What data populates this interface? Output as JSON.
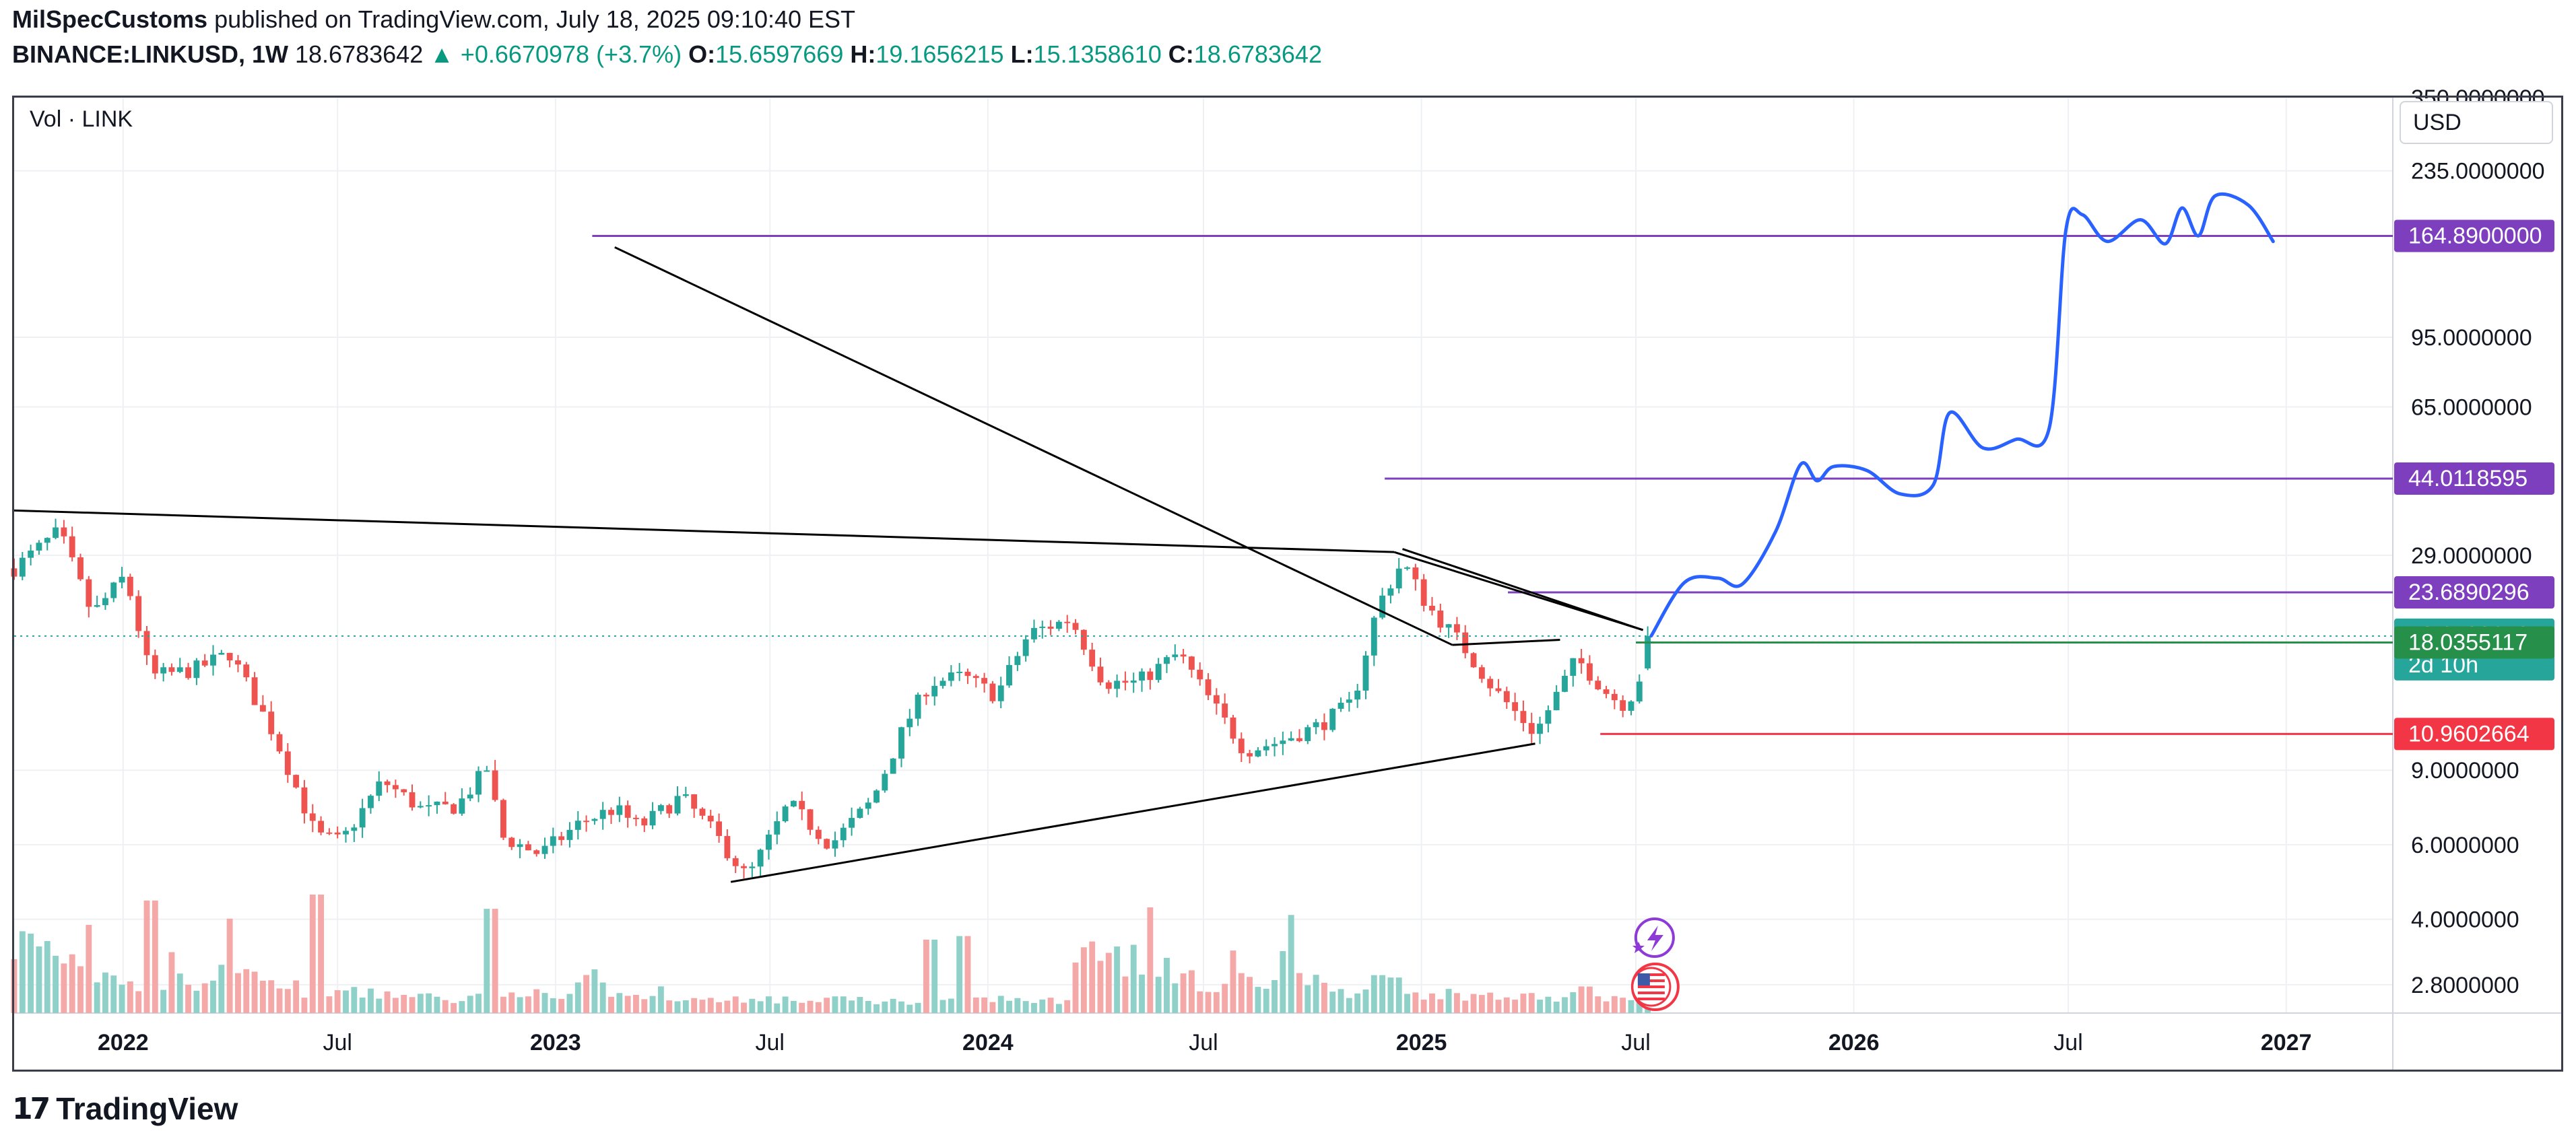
{
  "header": {
    "author": "MilSpecCustoms",
    "published_text": "published on TradingView.com, July 18, 2025 09:10:40 EST",
    "symbol": "BINANCE:LINKUSD, 1W",
    "price": "18.6783642",
    "change": "▲ +0.6670978 (+3.7%)",
    "open_label": "O:",
    "open": "15.6597669",
    "high_label": "H:",
    "high": "19.1656215",
    "low_label": "L:",
    "low": "15.1358610",
    "close_label": "C:",
    "close": "18.6783642"
  },
  "pane": {
    "volume_label": "Vol · LINK",
    "currency": "USD"
  },
  "footer": {
    "brand": "TradingView",
    "logo": "tv-logo"
  },
  "colors": {
    "up": "#26a69a",
    "down": "#ef5350",
    "vol_up": "#8fd1c8",
    "vol_down": "#f5a8a8",
    "purple": "#7e3fbf",
    "projection": "#2962ff",
    "trend": "#000000",
    "green_label": "#26904a",
    "red_label": "#f23645",
    "grid": "#eef0f3"
  },
  "chart_data": {
    "type": "candlestick",
    "scale": "log",
    "ylim": [
      2.4,
      350
    ],
    "xlim": [
      "2021-10-01",
      "2027-04-01"
    ],
    "x_ticks": [
      {
        "label": "2022",
        "date": "2022-01-01",
        "bold": true
      },
      {
        "label": "Jul",
        "date": "2022-07-01",
        "bold": false
      },
      {
        "label": "2023",
        "date": "2023-01-01",
        "bold": true
      },
      {
        "label": "Jul",
        "date": "2023-07-01",
        "bold": false
      },
      {
        "label": "2024",
        "date": "2024-01-01",
        "bold": true
      },
      {
        "label": "Jul",
        "date": "2024-07-01",
        "bold": false
      },
      {
        "label": "2025",
        "date": "2025-01-01",
        "bold": true
      },
      {
        "label": "Jul",
        "date": "2025-07-01",
        "bold": false
      },
      {
        "label": "2026",
        "date": "2026-01-01",
        "bold": true
      },
      {
        "label": "Jul",
        "date": "2026-07-01",
        "bold": false
      },
      {
        "label": "2027",
        "date": "2027-01-01",
        "bold": true
      }
    ],
    "y_ticks": [
      {
        "label": "350.0000000",
        "value": 350
      },
      {
        "label": "235.0000000",
        "value": 235
      },
      {
        "label": "95.0000000",
        "value": 95
      },
      {
        "label": "65.0000000",
        "value": 65
      },
      {
        "label": "29.0000000",
        "value": 29
      },
      {
        "label": "9.0000000",
        "value": 9
      },
      {
        "label": "6.0000000",
        "value": 6
      },
      {
        "label": "4.0000000",
        "value": 4
      },
      {
        "label": "2.8000000",
        "value": 2.8
      }
    ],
    "price_labels": [
      {
        "label": "164.8900000",
        "value": 164.89,
        "color": "purple"
      },
      {
        "label": "44.0118595",
        "value": 44.0118595,
        "color": "purple"
      },
      {
        "label": "23.6890296",
        "value": 23.6890296,
        "color": "purple"
      },
      {
        "label": "18.6783642",
        "sub": "2d 10h",
        "value": 18.6783642,
        "color": "up"
      },
      {
        "label": "18.0355117",
        "value": 18.0355117,
        "color": "green_label"
      },
      {
        "label": "10.9602664",
        "value": 10.9602664,
        "color": "red_label"
      }
    ],
    "horizontal_levels": [
      {
        "value": 164.89,
        "from": "2023-02-01",
        "color": "purple"
      },
      {
        "value": 44.0118595,
        "from": "2024-12-01",
        "color": "purple"
      },
      {
        "value": 23.6890296,
        "from": "2025-03-15",
        "color": "purple"
      },
      {
        "value": 18.0355117,
        "from": "2025-07-01",
        "color": "green_label"
      },
      {
        "value": 10.9602664,
        "from": "2025-06-01",
        "color": "red_label"
      }
    ],
    "last_price": 18.6783642,
    "close_path": [
      [
        "2021-10-01",
        27
      ],
      [
        "2021-11-08",
        33
      ],
      [
        "2021-12-06",
        21
      ],
      [
        "2022-01-03",
        26
      ],
      [
        "2022-01-24",
        15
      ],
      [
        "2022-03-01",
        15.5
      ],
      [
        "2022-04-01",
        17
      ],
      [
        "2022-05-08",
        11
      ],
      [
        "2022-06-13",
        6.3
      ],
      [
        "2022-07-04",
        6.1
      ],
      [
        "2022-08-08",
        8.5
      ],
      [
        "2022-09-12",
        7.2
      ],
      [
        "2022-10-10",
        7.4
      ],
      [
        "2022-11-07",
        9.3
      ],
      [
        "2022-11-14",
        6.3
      ],
      [
        "2022-12-19",
        5.7
      ],
      [
        "2023-01-23",
        6.8
      ],
      [
        "2023-02-20",
        7.3
      ],
      [
        "2023-03-13",
        6.6
      ],
      [
        "2023-04-17",
        7.8
      ],
      [
        "2023-05-15",
        6.4
      ],
      [
        "2023-06-12",
        5.0
      ],
      [
        "2023-07-17",
        7.5
      ],
      [
        "2023-08-21",
        6.0
      ],
      [
        "2023-09-25",
        7.6
      ],
      [
        "2023-10-23",
        11.5
      ],
      [
        "2023-11-13",
        14.5
      ],
      [
        "2023-12-11",
        15.0
      ],
      [
        "2024-01-08",
        13.5
      ],
      [
        "2024-02-05",
        19.0
      ],
      [
        "2024-03-11",
        20.5
      ],
      [
        "2024-04-08",
        14.5
      ],
      [
        "2024-05-06",
        14.5
      ],
      [
        "2024-06-10",
        17.0
      ],
      [
        "2024-07-08",
        13.0
      ],
      [
        "2024-08-05",
        10.0
      ],
      [
        "2024-09-02",
        10.5
      ],
      [
        "2024-10-07",
        11.5
      ],
      [
        "2024-11-04",
        13.0
      ],
      [
        "2024-11-25",
        22.0
      ],
      [
        "2024-12-16",
        28.0
      ],
      [
        "2025-01-06",
        22.0
      ],
      [
        "2025-02-03",
        18.0
      ],
      [
        "2025-03-03",
        14.0
      ],
      [
        "2025-04-07",
        11.0
      ],
      [
        "2025-05-12",
        16.5
      ],
      [
        "2025-06-09",
        13.5
      ],
      [
        "2025-06-23",
        12.8
      ],
      [
        "2025-07-07",
        15.5
      ],
      [
        "2025-07-14",
        18.68
      ]
    ],
    "volume_pattern": [
      0.55,
      0.6,
      0.62,
      0.5,
      0.62,
      0.48,
      0.4,
      0.55,
      0.45,
      0.72,
      0.3,
      0.42,
      0.35,
      0.3,
      0.28,
      0.22,
      0.25,
      0.2,
      0.23,
      0.55,
      0.28,
      0.32,
      0.24,
      0.2,
      0.22,
      0.48,
      0.95,
      0.4,
      0.3,
      0.28,
      0.22,
      0.25,
      0.2,
      0.18,
      0.22,
      0.18,
      0.2,
      0.16,
      0.15,
      0.18,
      0.2,
      0.17,
      0.16,
      0.2,
      0.15,
      0.18,
      0.14,
      0.15,
      0.16,
      0.14,
      0.15,
      0.13,
      0.14,
      0.12,
      0.13,
      0.15,
      0.14,
      0.12,
      0.11,
      0.13,
      0.16,
      0.18,
      0.2,
      0.16,
      0.14,
      0.12,
      0.12,
      0.15,
      0.2,
      0.25,
      0.3,
      0.22,
      0.18,
      0.15,
      0.14,
      0.16,
      0.14,
      0.13,
      0.18,
      0.15,
      0.12,
      0.14,
      0.12,
      0.1,
      0.11,
      0.12,
      0.1,
      0.13,
      0.12,
      0.11,
      0.1,
      0.12,
      0.1,
      0.11,
      0.12,
      0.1,
      0.1,
      0.11,
      0.12,
      0.14,
      0.11,
      0.1,
      0.12,
      0.11,
      0.1,
      0.09,
      0.1,
      0.11,
      0.1,
      0.09,
      0.1,
      0.1,
      0.09,
      0.1,
      0.11,
      0.1,
      0.12,
      0.11,
      0.13,
      0.12,
      0.1,
      0.11,
      0.12,
      0.1,
      0.11,
      0.12,
      0.1,
      0.1
    ],
    "volume_spikes": [
      [
        "2022-01-24",
        0.95
      ],
      [
        "2022-06-13",
        1.0
      ],
      [
        "2022-11-07",
        0.88
      ],
      [
        "2023-11-13",
        0.62
      ],
      [
        "2023-12-11",
        0.65
      ],
      [
        "2024-11-25",
        0.32
      ],
      [
        "2024-12-09",
        0.3
      ]
    ],
    "trendlines": [
      {
        "x1": "2021-10-01",
        "y1": 37,
        "x2": "2024-12-09",
        "y2": 29.5
      },
      {
        "x1": "2024-12-09",
        "y1": 29.5,
        "x2": "2025-07-07",
        "y2": 19.3
      },
      {
        "x1": "2023-02-20",
        "y1": 155,
        "x2": "2025-01-27",
        "y2": 17.8
      },
      {
        "x1": "2024-12-16",
        "y1": 30,
        "x2": "2025-07-07",
        "y2": 19.3
      },
      {
        "x1": "2025-01-27",
        "y1": 17.8,
        "x2": "2025-04-28",
        "y2": 18.3
      },
      {
        "x1": "2023-05-29",
        "y1": 4.9,
        "x2": "2025-04-07",
        "y2": 10.4
      }
    ],
    "projection": [
      [
        "2025-07-14",
        18.7
      ],
      [
        "2025-08-11",
        25.0
      ],
      [
        "2025-09-08",
        25.6
      ],
      [
        "2025-09-29",
        24.8
      ],
      [
        "2025-10-27",
        33.0
      ],
      [
        "2025-11-17",
        47.5
      ],
      [
        "2025-12-01",
        43.5
      ],
      [
        "2025-12-15",
        47.0
      ],
      [
        "2026-01-12",
        46.0
      ],
      [
        "2026-02-09",
        40.5
      ],
      [
        "2026-03-09",
        42.5
      ],
      [
        "2026-03-23",
        63.0
      ],
      [
        "2026-04-20",
        52.0
      ],
      [
        "2026-05-18",
        54.5
      ],
      [
        "2026-06-15",
        58.0
      ],
      [
        "2026-06-29",
        170.0
      ],
      [
        "2026-07-13",
        185.0
      ],
      [
        "2026-08-03",
        160.0
      ],
      [
        "2026-08-31",
        180.0
      ],
      [
        "2026-09-21",
        158.0
      ],
      [
        "2026-10-05",
        192.0
      ],
      [
        "2026-10-19",
        165.0
      ],
      [
        "2026-11-02",
        205.0
      ],
      [
        "2026-11-30",
        195.0
      ],
      [
        "2026-12-21",
        160.0
      ]
    ],
    "events": [
      {
        "date": "2025-07-14",
        "icon": "lightning-icon"
      },
      {
        "date": "2025-07-14",
        "icon": "us-flag-icon"
      }
    ]
  }
}
